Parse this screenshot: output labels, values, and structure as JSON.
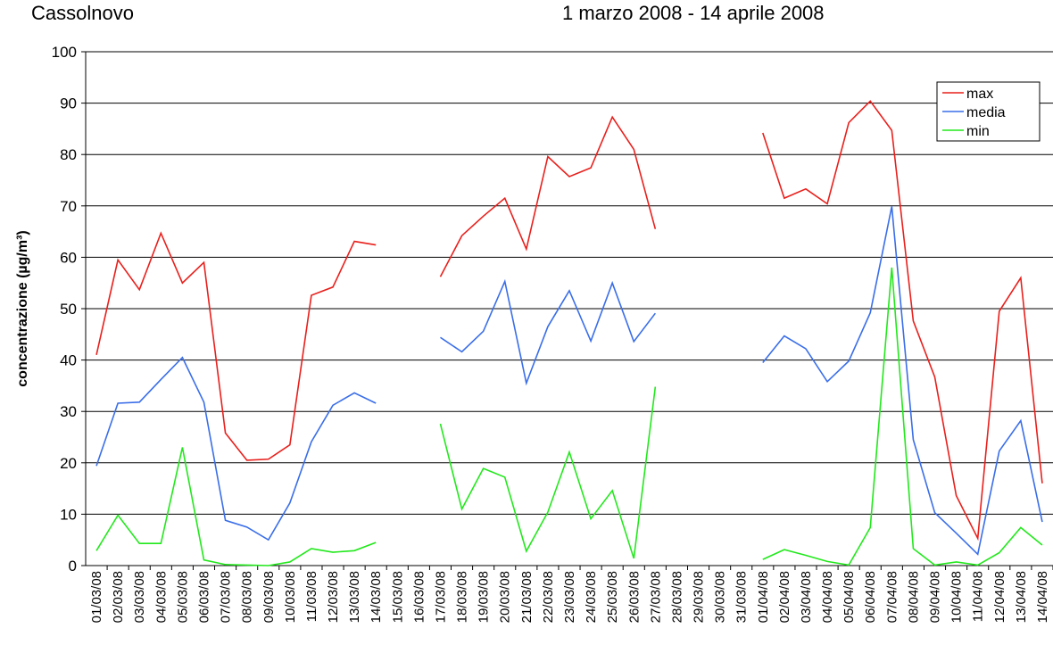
{
  "chart_data": {
    "type": "line",
    "subtitle_left": "Cassolnovo",
    "subtitle_right": "1 marzo 2008 - 14 aprile 2008",
    "y_label": "concentrazione (µg/m³)",
    "categories": [
      "01/03/08",
      "02/03/08",
      "03/03/08",
      "04/03/08",
      "05/03/08",
      "06/03/08",
      "07/03/08",
      "08/03/08",
      "09/03/08",
      "10/03/08",
      "11/03/08",
      "12/03/08",
      "13/03/08",
      "14/03/08",
      "15/03/08",
      "16/03/08",
      "17/03/08",
      "18/03/08",
      "19/03/08",
      "20/03/08",
      "21/03/08",
      "22/03/08",
      "23/03/08",
      "24/03/08",
      "25/03/08",
      "26/03/08",
      "27/03/08",
      "28/03/08",
      "29/03/08",
      "30/03/08",
      "31/03/08",
      "01/04/08",
      "02/04/08",
      "03/04/08",
      "04/04/08",
      "05/04/08",
      "06/04/08",
      "07/04/08",
      "08/04/08",
      "09/04/08",
      "10/04/08",
      "11/04/08",
      "12/04/08",
      "13/04/08",
      "14/04/08"
    ],
    "series": [
      {
        "name": "max",
        "color": "#e8201c",
        "values": [
          41,
          59.5,
          53.7,
          64.7,
          55,
          59,
          25.8,
          20.5,
          20.7,
          23.5,
          52.6,
          54.2,
          63.1,
          62.4,
          null,
          null,
          56.2,
          64.2,
          68,
          71.5,
          61.6,
          79.6,
          75.7,
          77.4,
          87.3,
          81,
          65.5,
          null,
          null,
          null,
          null,
          84.2,
          71.5,
          73.3,
          70.4,
          86.2,
          90.4,
          84.7,
          47.6,
          36.7,
          13.6,
          5.3,
          49.5,
          56,
          16
        ]
      },
      {
        "name": "media",
        "color": "#3a6ee8",
        "values": [
          19.4,
          31.6,
          31.8,
          36.2,
          40.5,
          31.8,
          8.8,
          7.5,
          5,
          12.2,
          24.1,
          31.2,
          33.6,
          31.6,
          null,
          null,
          44.4,
          41.6,
          45.6,
          55.3,
          35.5,
          46.5,
          53.5,
          43.7,
          55,
          43.6,
          49.1,
          null,
          null,
          null,
          null,
          39.5,
          44.7,
          42.2,
          35.8,
          39.8,
          49.2,
          69.9,
          24.5,
          10.3,
          6.3,
          2.2,
          22.3,
          28.2,
          8.5
        ]
      },
      {
        "name": "min",
        "color": "#22e81c",
        "values": [
          2.9,
          9.8,
          4.3,
          4.3,
          23,
          1.1,
          0.2,
          0.1,
          0,
          0.7,
          3.3,
          2.6,
          2.9,
          4.5,
          null,
          null,
          27.6,
          11,
          18.9,
          17.2,
          2.8,
          10.4,
          22.1,
          9.1,
          14.6,
          1.4,
          34.8,
          null,
          null,
          null,
          null,
          1.2,
          3.1,
          2,
          0.8,
          0.1,
          7.4,
          58,
          3.3,
          0.1,
          0.7,
          0.1,
          2.5,
          7.4,
          4
        ]
      }
    ],
    "ylim": [
      0,
      100
    ],
    "yticks": [
      0,
      10,
      20,
      30,
      40,
      50,
      60,
      70,
      80,
      90,
      100
    ],
    "grid": true,
    "legend": "top-right"
  }
}
